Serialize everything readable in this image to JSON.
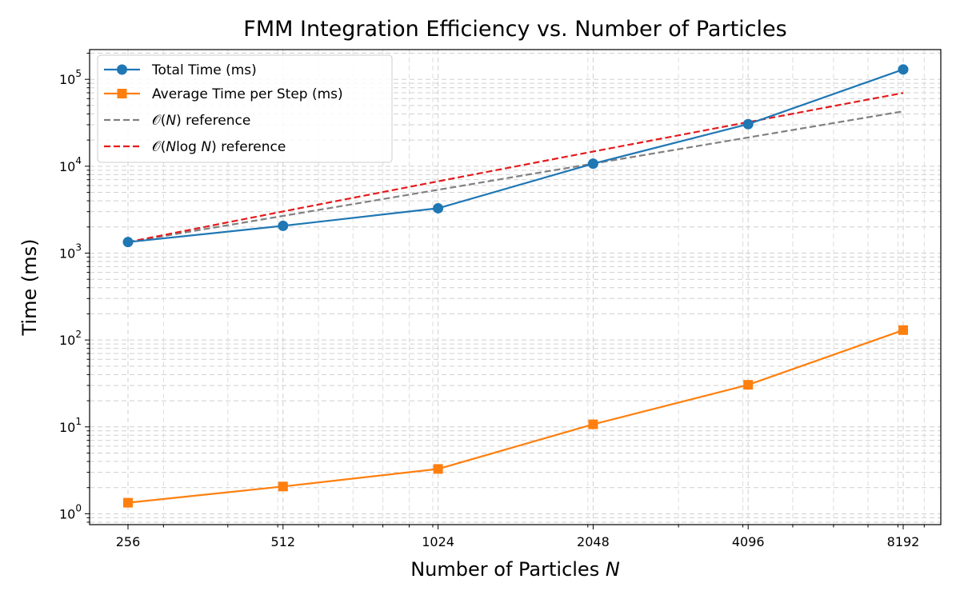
{
  "chart_data": {
    "type": "line",
    "title": "FMM Integration Efficiency vs. Number of Particles",
    "xlabel": "Number of Particles ",
    "xlabel_var": "N",
    "ylabel": "Time (ms)",
    "x_scale": "log2",
    "y_scale": "log10",
    "x": [
      256,
      512,
      1024,
      2048,
      4096,
      8192
    ],
    "x_tick_labels": [
      "256",
      "512",
      "1024",
      "2048",
      "4096",
      "8192"
    ],
    "y_ticks": [
      {
        "base": "10",
        "exp": "0"
      },
      {
        "base": "10",
        "exp": "1"
      },
      {
        "base": "10",
        "exp": "2"
      },
      {
        "base": "10",
        "exp": "3"
      },
      {
        "base": "10",
        "exp": "4"
      },
      {
        "base": "10",
        "exp": "5"
      }
    ],
    "ylim": [
      0.75,
      220000
    ],
    "grid": true,
    "legend_position": "top-left",
    "series": [
      {
        "name": "Total Time (ms)",
        "color": "#1f77b4",
        "marker": "circle",
        "style": "solid",
        "values": [
          1340,
          2060,
          3280,
          10700,
          30500,
          130000
        ]
      },
      {
        "name": "Average Time per Step (ms)",
        "color": "#ff7f0e",
        "marker": "square",
        "style": "solid",
        "values": [
          1.34,
          2.06,
          3.28,
          10.7,
          30.5,
          130
        ]
      },
      {
        "name_parts": [
          "𝒪(",
          "N",
          ") reference"
        ],
        "color": "#808080",
        "marker": "none",
        "style": "dashed",
        "values": [
          1340,
          2680,
          5360,
          10720,
          21440,
          42880
        ]
      },
      {
        "name_parts": [
          "𝒪(",
          "N",
          "log ",
          "N",
          ") reference"
        ],
        "color": "#e41a1c",
        "marker": "none",
        "style": "dashed",
        "values": [
          1340,
          3015,
          6700,
          14740,
          32160,
          69680
        ]
      }
    ]
  }
}
